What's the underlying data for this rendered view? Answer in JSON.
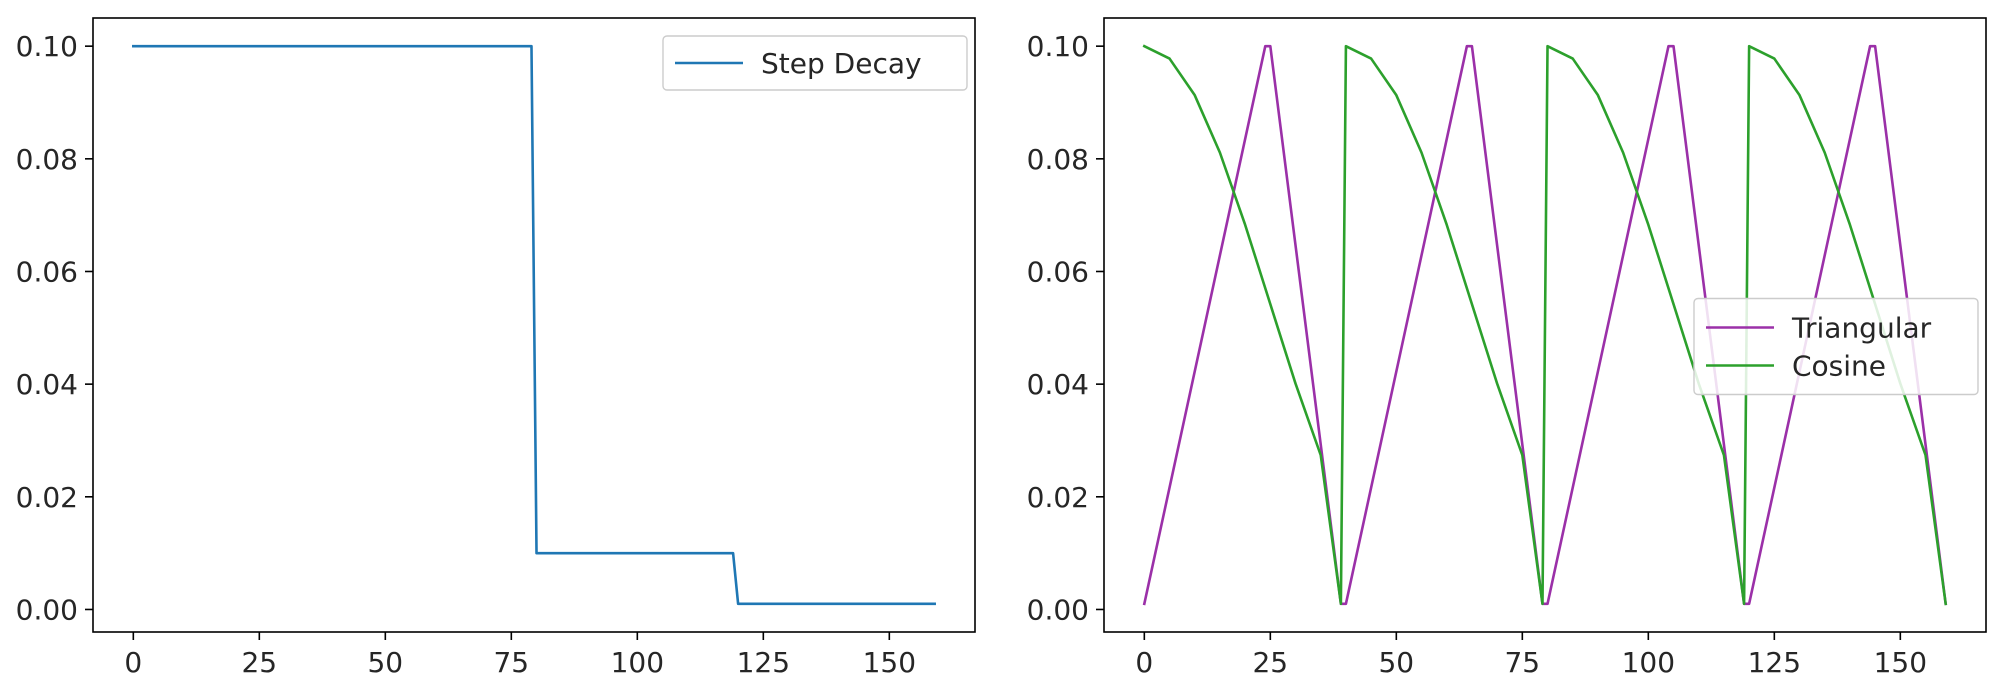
{
  "chart_data": [
    {
      "type": "line",
      "title": "",
      "xlabel": "",
      "ylabel": "",
      "xlim": [
        -8,
        167
      ],
      "ylim": [
        -0.004,
        0.105
      ],
      "x_ticks": [
        0,
        25,
        50,
        75,
        100,
        125,
        150
      ],
      "x_tick_labels": [
        "0",
        "25",
        "50",
        "75",
        "100",
        "125",
        "150"
      ],
      "y_ticks": [
        0.0,
        0.02,
        0.04,
        0.06,
        0.08,
        0.1
      ],
      "y_tick_labels": [
        "0.00",
        "0.02",
        "0.04",
        "0.06",
        "0.08",
        "0.10"
      ],
      "grid": false,
      "legend_position": "upper right",
      "series": [
        {
          "name": "Step Decay",
          "color": "#1f77b4",
          "x": [
            0,
            79,
            80,
            119,
            120,
            159
          ],
          "y": [
            0.1,
            0.1,
            0.01,
            0.01,
            0.001,
            0.001
          ]
        }
      ]
    },
    {
      "type": "line",
      "title": "",
      "xlabel": "",
      "ylabel": "",
      "xlim": [
        -8,
        167
      ],
      "ylim": [
        -0.004,
        0.105
      ],
      "x_ticks": [
        0,
        25,
        50,
        75,
        100,
        125,
        150
      ],
      "x_tick_labels": [
        "0",
        "25",
        "50",
        "75",
        "100",
        "125",
        "150"
      ],
      "y_ticks": [
        0.0,
        0.02,
        0.04,
        0.06,
        0.08,
        0.1
      ],
      "y_tick_labels": [
        "0.00",
        "0.02",
        "0.04",
        "0.06",
        "0.08",
        "0.10"
      ],
      "grid": false,
      "legend_position": "center right",
      "series": [
        {
          "name": "Triangular",
          "color": "#9b30a8",
          "x": [
            0,
            24,
            25,
            39,
            40,
            64,
            65,
            79,
            80,
            104,
            105,
            119,
            120,
            144,
            145,
            159
          ],
          "y": [
            0.001,
            0.1,
            0.1,
            0.001,
            0.001,
            0.1,
            0.1,
            0.001,
            0.001,
            0.1,
            0.1,
            0.001,
            0.001,
            0.1,
            0.1,
            0.001
          ]
        },
        {
          "name": "Cosine",
          "color": "#2ca02c",
          "x": [
            0,
            5,
            10,
            15,
            20,
            25,
            30,
            35,
            39,
            40,
            45,
            50,
            55,
            60,
            65,
            70,
            75,
            79,
            80,
            85,
            90,
            95,
            100,
            105,
            110,
            115,
            119,
            120,
            125,
            130,
            135,
            140,
            145,
            150,
            155,
            159
          ],
          "y": [
            0.1,
            0.0978,
            0.0913,
            0.0811,
            0.0683,
            0.0542,
            0.0401,
            0.0274,
            0.001,
            0.1,
            0.0978,
            0.0913,
            0.0811,
            0.0683,
            0.0542,
            0.0401,
            0.0274,
            0.001,
            0.1,
            0.0978,
            0.0913,
            0.0811,
            0.0683,
            0.0542,
            0.0401,
            0.0274,
            0.001,
            0.1,
            0.0978,
            0.0913,
            0.0811,
            0.0683,
            0.0542,
            0.0401,
            0.0274,
            0.001
          ]
        }
      ]
    }
  ]
}
